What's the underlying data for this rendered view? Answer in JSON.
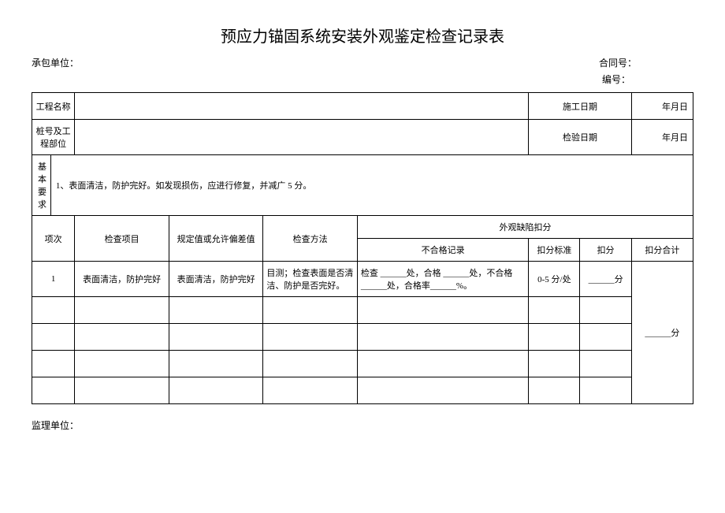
{
  "title": "预应力锚固系统安装外观鉴定检查记录表",
  "meta": {
    "contractor_label": "承包单位：",
    "contract_no_label": "合同号：",
    "serial_no_label": "编号："
  },
  "info_table": {
    "project_name_label": "工程名称",
    "construction_date_label": "施工日期",
    "date_placeholder": "年月日",
    "pile_label": "桩号及工程部位",
    "inspection_date_label": "检验日期"
  },
  "requirement": {
    "label": "基本要求",
    "text": "1、表面清洁，防护完好。如发现损伤，应进行修复，并减广 5 分。"
  },
  "columns": {
    "seq": "项次",
    "check_item": "检查项目",
    "spec": "规定值或允许偏差值",
    "method": "检查方法",
    "defect_header": "外观缺陷扣分",
    "fail_record": "不合格记录",
    "deduct_std": "扣分标准",
    "deduct": "扣分",
    "deduct_total": "扣分合计"
  },
  "rows": [
    {
      "seq": "1",
      "item": "表面清洁，防护完好",
      "spec": "表面清洁，防护完好",
      "method": "目测；检查表面是否清洁、防护是否完好。",
      "record": "检查 ______处，合格 ______处，不合格 ______处，合格率______%。",
      "std": "0-5 分/处",
      "deduct": "______分"
    },
    {
      "seq": "",
      "item": "",
      "spec": "",
      "method": "",
      "record": "",
      "std": "",
      "deduct": ""
    },
    {
      "seq": "",
      "item": "",
      "spec": "",
      "method": "",
      "record": "",
      "std": "",
      "deduct": ""
    },
    {
      "seq": "",
      "item": "",
      "spec": "",
      "method": "",
      "record": "",
      "std": "",
      "deduct": ""
    },
    {
      "seq": "",
      "item": "",
      "spec": "",
      "method": "",
      "record": "",
      "std": "",
      "deduct": ""
    }
  ],
  "total_value": "______分",
  "footer": {
    "supervisor_label": "监理单位："
  }
}
